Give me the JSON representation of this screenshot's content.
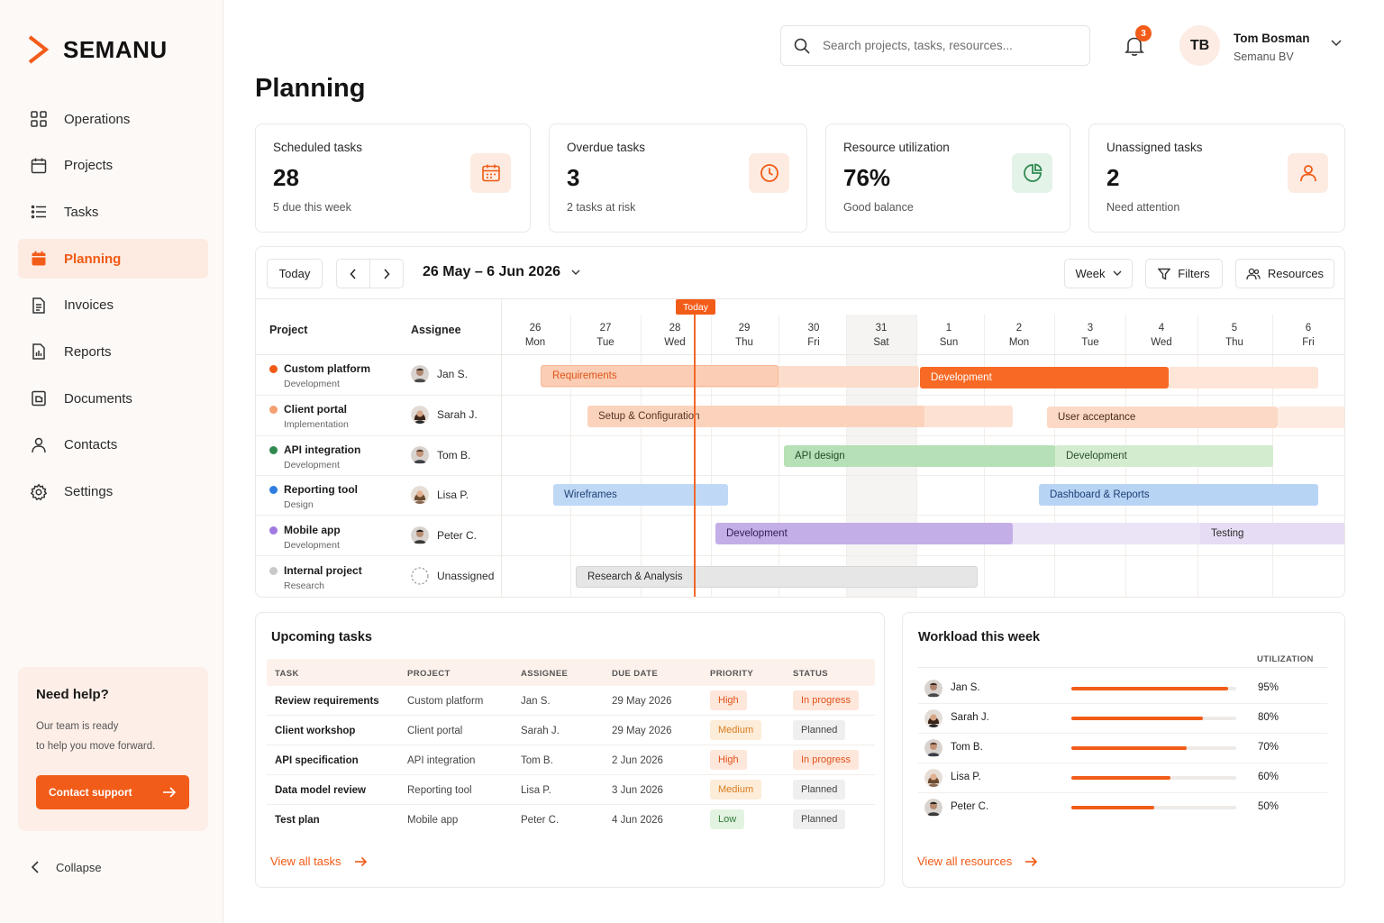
{
  "app": {
    "name": "SEMANU"
  },
  "sidebar": {
    "items": [
      {
        "label": "Operations",
        "icon": "grid-icon"
      },
      {
        "label": "Projects",
        "icon": "calendar-icon"
      },
      {
        "label": "Tasks",
        "icon": "list-icon"
      },
      {
        "label": "Planning",
        "icon": "calendar-filled-icon",
        "active": true
      },
      {
        "label": "Invoices",
        "icon": "document-icon"
      },
      {
        "label": "Reports",
        "icon": "report-icon"
      },
      {
        "label": "Documents",
        "icon": "folder-icon"
      },
      {
        "label": "Contacts",
        "icon": "user-icon"
      },
      {
        "label": "Settings",
        "icon": "gear-icon"
      }
    ],
    "help": {
      "title": "Need help?",
      "line1": "Our team is ready",
      "line2": "to help you move forward.",
      "button": "Contact support"
    },
    "collapse": "Collapse"
  },
  "header": {
    "title": "Planning",
    "search_placeholder": "Search projects, tasks, resources...",
    "notifications": "3",
    "user": {
      "initials": "TB",
      "name": "Tom Bosman",
      "org": "Semanu BV"
    }
  },
  "kpis": [
    {
      "label": "Scheduled tasks",
      "value": "28",
      "sub": "5 due this week",
      "icon": "calendar-icon",
      "color": "#f05a14",
      "bg": "#fdebe2"
    },
    {
      "label": "Overdue tasks",
      "value": "3",
      "sub": "2 tasks at risk",
      "icon": "clock-icon",
      "color": "#f05a14",
      "bg": "#fdebe2"
    },
    {
      "label": "Resource utilization",
      "value": "76%",
      "sub": "Good balance",
      "icon": "pie-icon",
      "color": "#2f8a4f",
      "bg": "#e4f3e8"
    },
    {
      "label": "Unassigned tasks",
      "value": "2",
      "sub": "Need attention",
      "icon": "user-icon",
      "color": "#f05a14",
      "bg": "#fdebe2"
    }
  ],
  "gantt": {
    "today_btn": "Today",
    "range": "26 May – 6 Jun 2026",
    "view": "Week",
    "filters": "Filters",
    "resources": "Resources",
    "col_project": "Project",
    "col_assignee": "Assignee",
    "today_tag": "Today",
    "days": [
      {
        "num": "26",
        "name": "Mon"
      },
      {
        "num": "27",
        "name": "Tue"
      },
      {
        "num": "28",
        "name": "Wed"
      },
      {
        "num": "29",
        "name": "Thu"
      },
      {
        "num": "30",
        "name": "Fri"
      },
      {
        "num": "31",
        "name": "Sat"
      },
      {
        "num": "1",
        "name": "Sun"
      },
      {
        "num": "2",
        "name": "Mon"
      },
      {
        "num": "3",
        "name": "Tue"
      },
      {
        "num": "4",
        "name": "Wed"
      },
      {
        "num": "5",
        "name": "Thu"
      },
      {
        "num": "6",
        "name": "Fri"
      }
    ],
    "rows": [
      {
        "project": "Custom platform",
        "phase": "Development",
        "dot": "#f05a14",
        "assignee": "Jan S."
      },
      {
        "project": "Client portal",
        "phase": "Implementation",
        "dot": "#f4a070",
        "assignee": "Sarah J."
      },
      {
        "project": "API integration",
        "phase": "Development",
        "dot": "#2f8a4f",
        "assignee": "Tom B."
      },
      {
        "project": "Reporting tool",
        "phase": "Design",
        "dot": "#2f7de0",
        "assignee": "Lisa P."
      },
      {
        "project": "Mobile app",
        "phase": "Development",
        "dot": "#a07ae0",
        "assignee": "Peter C."
      },
      {
        "project": "Internal project",
        "phase": "Research",
        "dot": "#c9c9c9",
        "assignee": "Unassigned"
      }
    ],
    "bars": {
      "requirements": "Requirements",
      "development1": "Development",
      "setup": "Setup & Configuration",
      "uat": "User acceptance",
      "api_design": "API design",
      "development2": "Development",
      "wireframes": "Wireframes",
      "dashboard": "Dashboard & Reports",
      "development3": "Development",
      "testing": "Testing",
      "research": "Research & Analysis"
    }
  },
  "upcoming": {
    "title": "Upcoming tasks",
    "headers": [
      "TASK",
      "PROJECT",
      "ASSIGNEE",
      "DUE DATE",
      "PRIORITY",
      "STATUS"
    ],
    "rows": [
      {
        "task": "Review requirements",
        "project": "Custom platform",
        "assignee": "Jan S.",
        "due": "29 May 2026",
        "priority": "High",
        "status": "In progress"
      },
      {
        "task": "Client workshop",
        "project": "Client portal",
        "assignee": "Sarah J.",
        "due": "29 May 2026",
        "priority": "Medium",
        "status": "Planned"
      },
      {
        "task": "API specification",
        "project": "API integration",
        "assignee": "Tom B.",
        "due": "2 Jun 2026",
        "priority": "High",
        "status": "In progress"
      },
      {
        "task": "Data model review",
        "project": "Reporting tool",
        "assignee": "Lisa P.",
        "due": "3 Jun 2026",
        "priority": "Medium",
        "status": "Planned"
      },
      {
        "task": "Test plan",
        "project": "Mobile app",
        "assignee": "Peter C.",
        "due": "4 Jun 2026",
        "priority": "Low",
        "status": "Planned"
      }
    ],
    "link": "View all tasks"
  },
  "workload": {
    "title": "Workload this week",
    "header": "UTILIZATION",
    "rows": [
      {
        "name": "Jan S.",
        "pct": "95%",
        "value": 0.95
      },
      {
        "name": "Sarah J.",
        "pct": "80%",
        "value": 0.8
      },
      {
        "name": "Tom B.",
        "pct": "70%",
        "value": 0.7
      },
      {
        "name": "Lisa P.",
        "pct": "60%",
        "value": 0.6
      },
      {
        "name": "Peter C.",
        "pct": "50%",
        "value": 0.5
      }
    ],
    "link": "View all resources"
  }
}
